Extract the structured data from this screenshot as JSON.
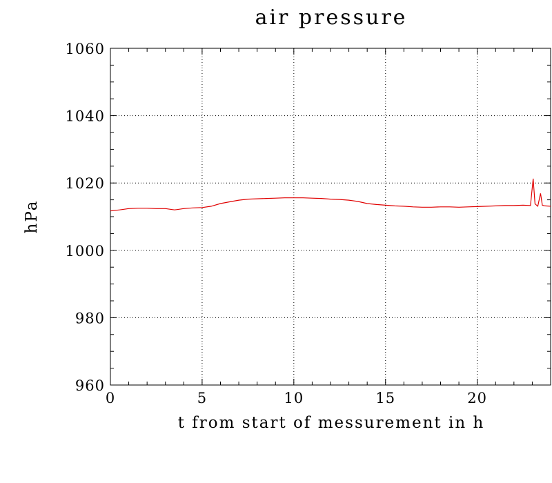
{
  "chart_data": {
    "type": "line",
    "title": "air pressure",
    "xlabel": "t from start of messurement in h",
    "ylabel": "hPa",
    "xlim": [
      0,
      24
    ],
    "ylim": [
      960,
      1060
    ],
    "xticks": [
      0,
      5,
      10,
      15,
      20
    ],
    "yticks": [
      960,
      980,
      1000,
      1020,
      1040,
      1060
    ],
    "x_minor_step": 1,
    "y_minor_step": 5,
    "grid": true,
    "colors": {
      "line": "#e00000",
      "axes": "#000000",
      "background": "#ffffff"
    },
    "series": [
      {
        "x": [
          0,
          0.5,
          1,
          1.5,
          2,
          2.5,
          3,
          3.5,
          4,
          4.5,
          5,
          5.5,
          6,
          6.5,
          7,
          7.5,
          8,
          8.5,
          9,
          9.5,
          10,
          10.5,
          11,
          11.5,
          12,
          12.5,
          13,
          13.5,
          14,
          14.5,
          15,
          15.5,
          16,
          16.5,
          17,
          17.5,
          18,
          18.5,
          19,
          19.5,
          20,
          20.5,
          21,
          21.5,
          22,
          22.5,
          22.9,
          23.05,
          23.15,
          23.3,
          23.45,
          23.55,
          23.7,
          24
        ],
        "values": [
          1011.7,
          1012.0,
          1012.4,
          1012.5,
          1012.5,
          1012.4,
          1012.4,
          1012.0,
          1012.4,
          1012.6,
          1012.7,
          1013.1,
          1013.9,
          1014.4,
          1014.9,
          1015.2,
          1015.3,
          1015.4,
          1015.5,
          1015.6,
          1015.6,
          1015.6,
          1015.5,
          1015.4,
          1015.2,
          1015.1,
          1014.9,
          1014.5,
          1013.9,
          1013.6,
          1013.4,
          1013.2,
          1013.1,
          1012.9,
          1012.8,
          1012.8,
          1012.9,
          1012.9,
          1012.8,
          1012.9,
          1013.0,
          1013.1,
          1013.2,
          1013.3,
          1013.3,
          1013.4,
          1013.3,
          1021.3,
          1013.8,
          1013.1,
          1016.9,
          1013.4,
          1013.2,
          1013.1
        ]
      }
    ]
  }
}
